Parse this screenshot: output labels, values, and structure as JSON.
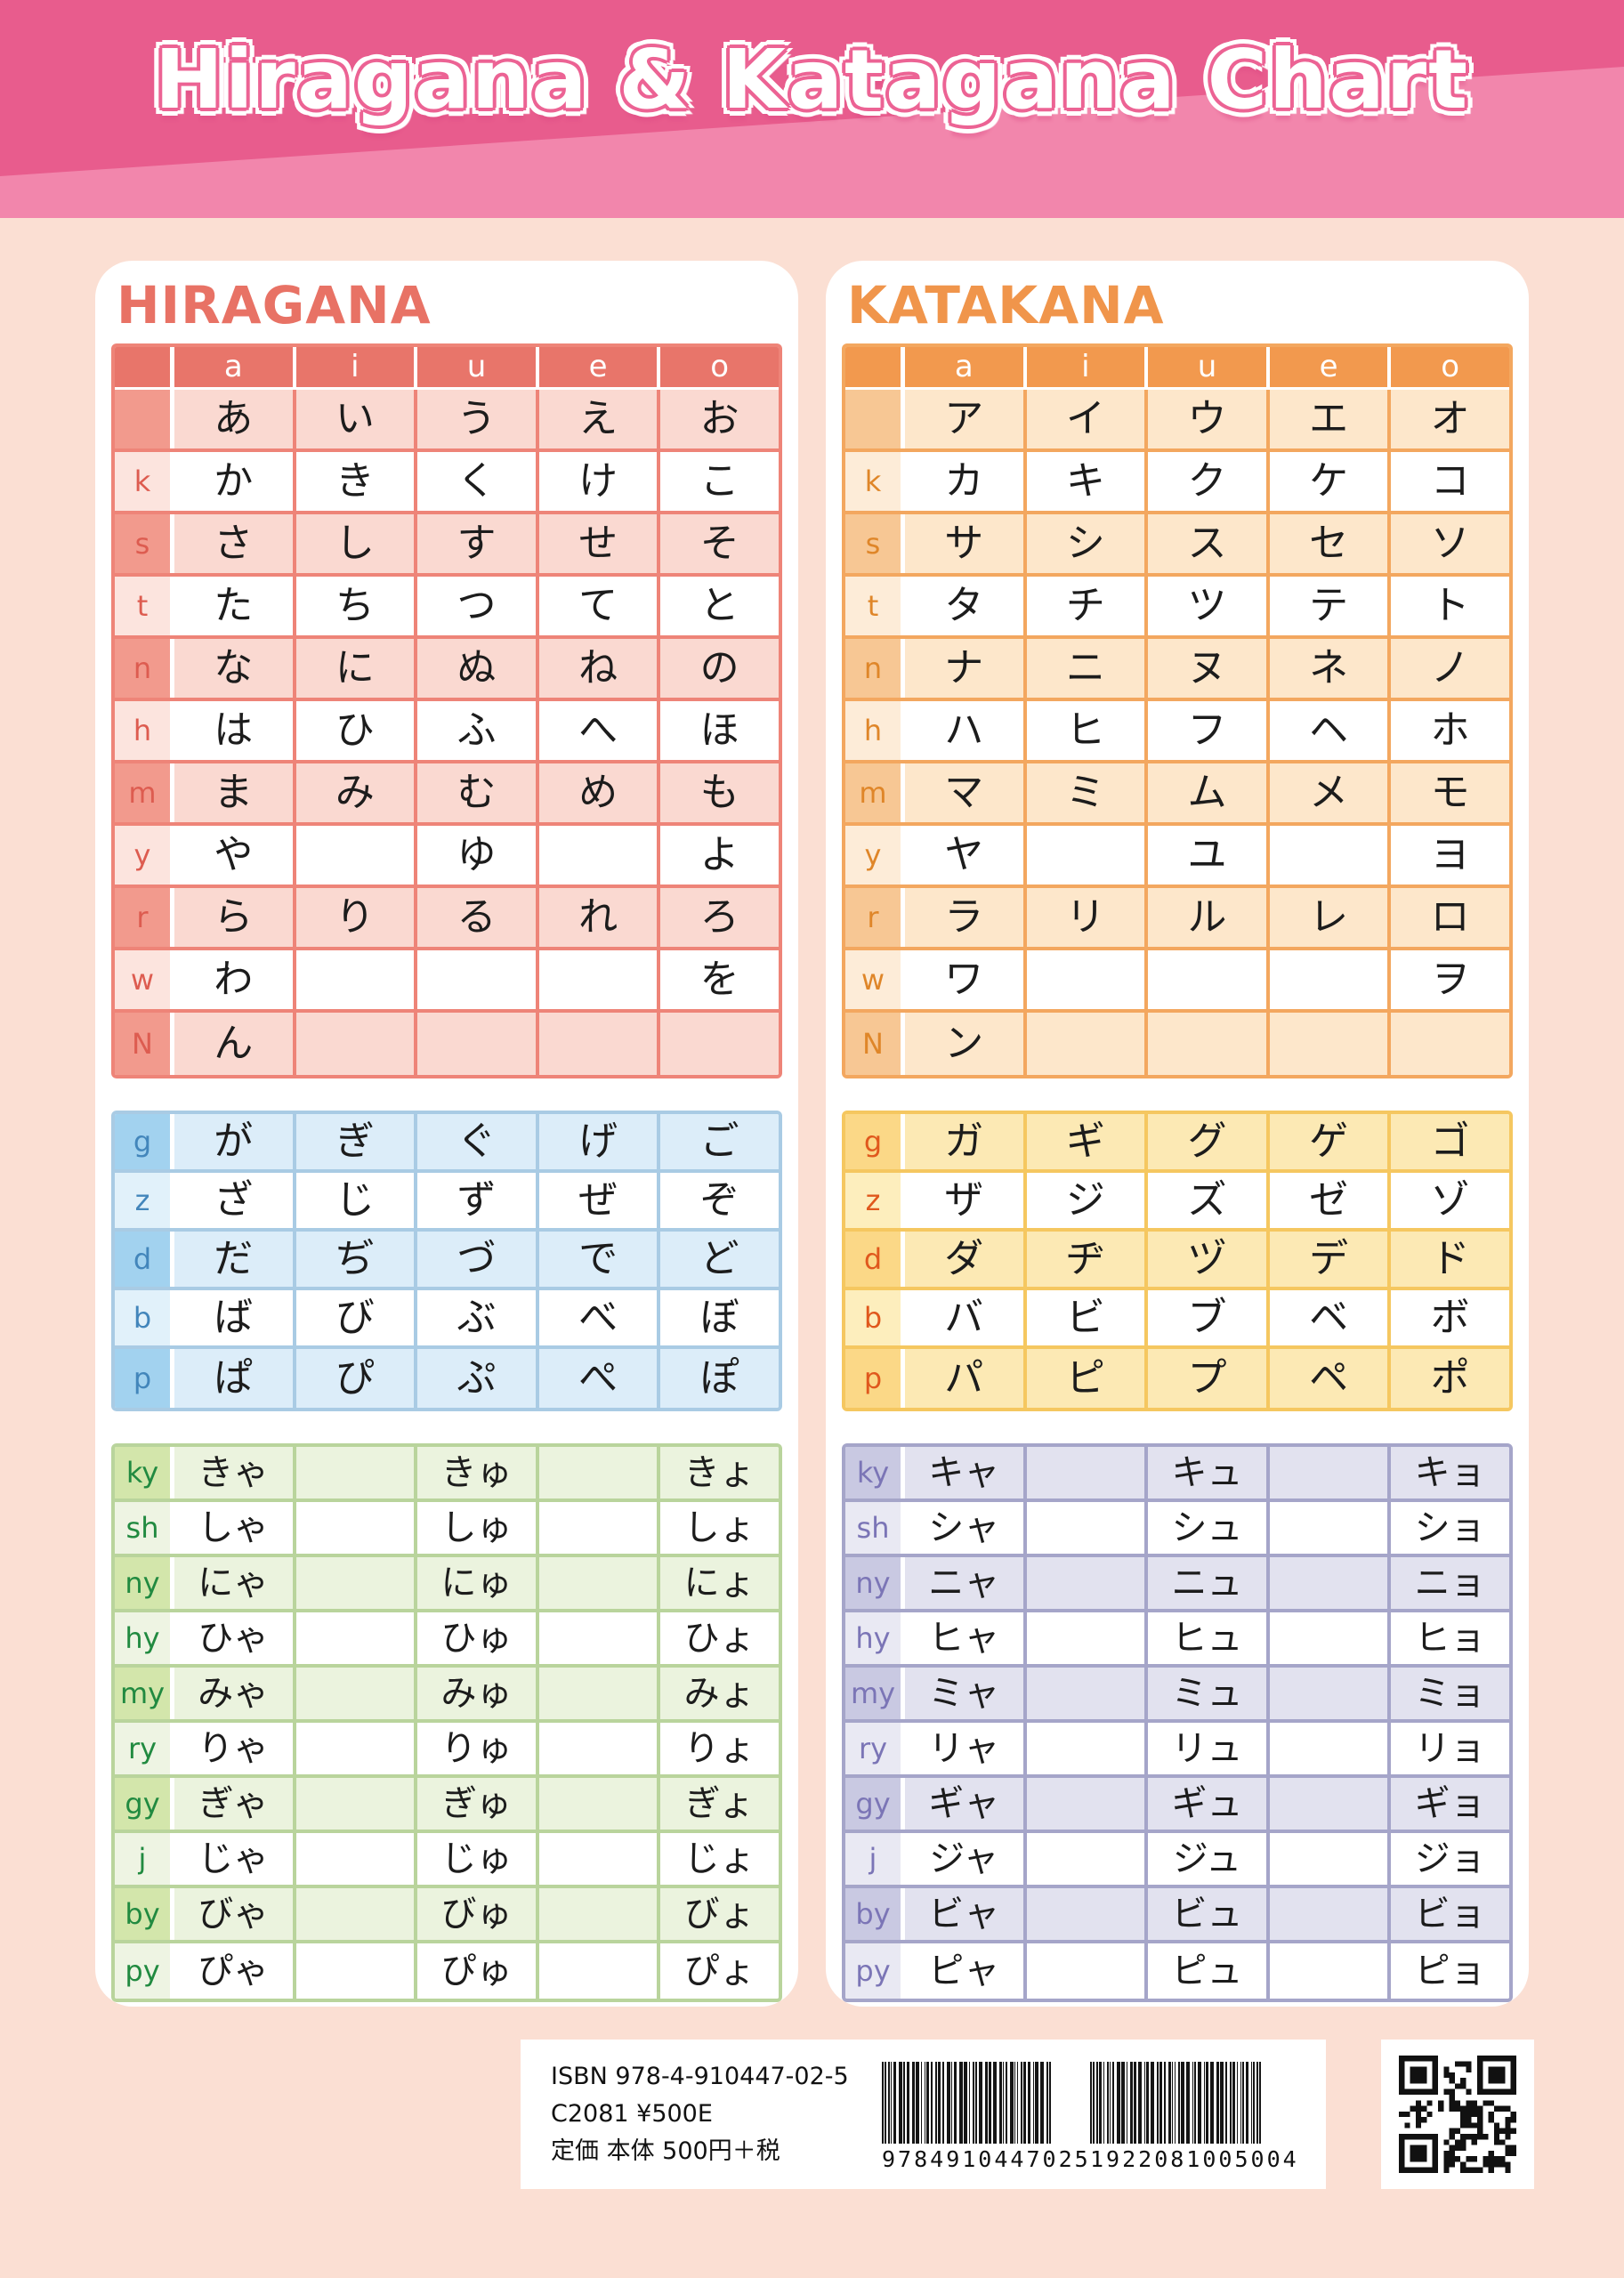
{
  "page": {
    "title": "Hiragana & Katagana Chart"
  },
  "vowel_header": [
    "a",
    "i",
    "u",
    "e",
    "o"
  ],
  "hiragana": {
    "title": "HIRAGANA",
    "base_rows": [
      {
        "label": "",
        "cells": [
          "あ",
          "い",
          "う",
          "え",
          "お"
        ]
      },
      {
        "label": "k",
        "cells": [
          "か",
          "き",
          "く",
          "け",
          "こ"
        ]
      },
      {
        "label": "s",
        "cells": [
          "さ",
          "し",
          "す",
          "せ",
          "そ"
        ]
      },
      {
        "label": "t",
        "cells": [
          "た",
          "ち",
          "つ",
          "て",
          "と"
        ]
      },
      {
        "label": "n",
        "cells": [
          "な",
          "に",
          "ぬ",
          "ね",
          "の"
        ]
      },
      {
        "label": "h",
        "cells": [
          "は",
          "ひ",
          "ふ",
          "へ",
          "ほ"
        ]
      },
      {
        "label": "m",
        "cells": [
          "ま",
          "み",
          "む",
          "め",
          "も"
        ]
      },
      {
        "label": "y",
        "cells": [
          "や",
          "",
          "ゆ",
          "",
          "よ"
        ]
      },
      {
        "label": "r",
        "cells": [
          "ら",
          "り",
          "る",
          "れ",
          "ろ"
        ]
      },
      {
        "label": "w",
        "cells": [
          "わ",
          "",
          "",
          "",
          "を"
        ]
      },
      {
        "label": "N",
        "cells": [
          "ん",
          "",
          "",
          "",
          ""
        ]
      }
    ],
    "dakuten_rows": [
      {
        "label": "g",
        "cells": [
          "が",
          "ぎ",
          "ぐ",
          "げ",
          "ご"
        ]
      },
      {
        "label": "z",
        "cells": [
          "ざ",
          "じ",
          "ず",
          "ぜ",
          "ぞ"
        ]
      },
      {
        "label": "d",
        "cells": [
          "だ",
          "ぢ",
          "づ",
          "で",
          "ど"
        ]
      },
      {
        "label": "b",
        "cells": [
          "ば",
          "び",
          "ぶ",
          "べ",
          "ぼ"
        ]
      },
      {
        "label": "p",
        "cells": [
          "ぱ",
          "ぴ",
          "ぷ",
          "ぺ",
          "ぽ"
        ]
      }
    ],
    "yoon_rows": [
      {
        "label": "ky",
        "cells": [
          "きゃ",
          "",
          "きゅ",
          "",
          "きょ"
        ]
      },
      {
        "label": "sh",
        "cells": [
          "しゃ",
          "",
          "しゅ",
          "",
          "しょ"
        ]
      },
      {
        "label": "ny",
        "cells": [
          "にゃ",
          "",
          "にゅ",
          "",
          "にょ"
        ]
      },
      {
        "label": "hy",
        "cells": [
          "ひゃ",
          "",
          "ひゅ",
          "",
          "ひょ"
        ]
      },
      {
        "label": "my",
        "cells": [
          "みゃ",
          "",
          "みゅ",
          "",
          "みょ"
        ]
      },
      {
        "label": "ry",
        "cells": [
          "りゃ",
          "",
          "りゅ",
          "",
          "りょ"
        ]
      },
      {
        "label": "gy",
        "cells": [
          "ぎゃ",
          "",
          "ぎゅ",
          "",
          "ぎょ"
        ]
      },
      {
        "label": "j",
        "cells": [
          "じゃ",
          "",
          "じゅ",
          "",
          "じょ"
        ]
      },
      {
        "label": "by",
        "cells": [
          "びゃ",
          "",
          "びゅ",
          "",
          "びょ"
        ]
      },
      {
        "label": "py",
        "cells": [
          "ぴゃ",
          "",
          "ぴゅ",
          "",
          "ぴょ"
        ]
      }
    ]
  },
  "katakana": {
    "title": "KATAKANA",
    "base_rows": [
      {
        "label": "",
        "cells": [
          "ア",
          "イ",
          "ウ",
          "エ",
          "オ"
        ]
      },
      {
        "label": "k",
        "cells": [
          "カ",
          "キ",
          "ク",
          "ケ",
          "コ"
        ]
      },
      {
        "label": "s",
        "cells": [
          "サ",
          "シ",
          "ス",
          "セ",
          "ソ"
        ]
      },
      {
        "label": "t",
        "cells": [
          "タ",
          "チ",
          "ツ",
          "テ",
          "ト"
        ]
      },
      {
        "label": "n",
        "cells": [
          "ナ",
          "ニ",
          "ヌ",
          "ネ",
          "ノ"
        ]
      },
      {
        "label": "h",
        "cells": [
          "ハ",
          "ヒ",
          "フ",
          "ヘ",
          "ホ"
        ]
      },
      {
        "label": "m",
        "cells": [
          "マ",
          "ミ",
          "ム",
          "メ",
          "モ"
        ]
      },
      {
        "label": "y",
        "cells": [
          "ヤ",
          "",
          "ユ",
          "",
          "ヨ"
        ]
      },
      {
        "label": "r",
        "cells": [
          "ラ",
          "リ",
          "ル",
          "レ",
          "ロ"
        ]
      },
      {
        "label": "w",
        "cells": [
          "ワ",
          "",
          "",
          "",
          "ヲ"
        ]
      },
      {
        "label": "N",
        "cells": [
          "ン",
          "",
          "",
          "",
          ""
        ]
      }
    ],
    "dakuten_rows": [
      {
        "label": "g",
        "cells": [
          "ガ",
          "ギ",
          "グ",
          "ゲ",
          "ゴ"
        ]
      },
      {
        "label": "z",
        "cells": [
          "ザ",
          "ジ",
          "ズ",
          "ゼ",
          "ゾ"
        ]
      },
      {
        "label": "d",
        "cells": [
          "ダ",
          "ヂ",
          "ヅ",
          "デ",
          "ド"
        ]
      },
      {
        "label": "b",
        "cells": [
          "バ",
          "ビ",
          "ブ",
          "ベ",
          "ボ"
        ]
      },
      {
        "label": "p",
        "cells": [
          "パ",
          "ピ",
          "プ",
          "ペ",
          "ポ"
        ]
      }
    ],
    "yoon_rows": [
      {
        "label": "ky",
        "cells": [
          "キャ",
          "",
          "キュ",
          "",
          "キョ"
        ]
      },
      {
        "label": "sh",
        "cells": [
          "シャ",
          "",
          "シュ",
          "",
          "ショ"
        ]
      },
      {
        "label": "ny",
        "cells": [
          "ニャ",
          "",
          "ニュ",
          "",
          "ニョ"
        ]
      },
      {
        "label": "hy",
        "cells": [
          "ヒャ",
          "",
          "ヒュ",
          "",
          "ヒョ"
        ]
      },
      {
        "label": "my",
        "cells": [
          "ミャ",
          "",
          "ミュ",
          "",
          "ミョ"
        ]
      },
      {
        "label": "ry",
        "cells": [
          "リャ",
          "",
          "リュ",
          "",
          "リョ"
        ]
      },
      {
        "label": "gy",
        "cells": [
          "ギャ",
          "",
          "ギュ",
          "",
          "ギョ"
        ]
      },
      {
        "label": "j",
        "cells": [
          "ジャ",
          "",
          "ジュ",
          "",
          "ジョ"
        ]
      },
      {
        "label": "by",
        "cells": [
          "ビャ",
          "",
          "ビュ",
          "",
          "ビョ"
        ]
      },
      {
        "label": "py",
        "cells": [
          "ピャ",
          "",
          "ピュ",
          "",
          "ピョ"
        ]
      }
    ]
  },
  "footer": {
    "isbn_line": "ISBN 978-4-910447-02-5",
    "code_line": "C2081 ¥500E",
    "price_line": "定価 本体 500円＋税",
    "barcode1_digits": "9784910447025",
    "barcode2_digits": "1922081005004"
  },
  "colors": {
    "page_bg": "#fbdfd3",
    "band_dark": "#e85c8d",
    "band_light": "#f286ac",
    "title_outline": "#ec6394",
    "themes": {
      "red": {
        "title": "#e87265",
        "header": "#e8756a",
        "headerText": "#ffffff",
        "border": "#ee8478",
        "cell": "#fad9d1",
        "labelDark": "#f29a8d",
        "labelLight": "#fce4de",
        "labelText": "#dd5c50"
      },
      "orange": {
        "title": "#f0954b",
        "header": "#f2994e",
        "headerText": "#ffffff",
        "border": "#f3a75f",
        "cell": "#fde7cb",
        "labelDark": "#f7c794",
        "labelLight": "#fdecd8",
        "labelText": "#df8629"
      },
      "blue": {
        "border": "#a9cbe4",
        "cell": "#dcedf9",
        "labelDark": "#a2d2ef",
        "labelLight": "#e1f1fa",
        "labelText": "#4386bb"
      },
      "green": {
        "border": "#b9d49c",
        "cell": "#ebf3de",
        "labelDark": "#d3e6ab",
        "labelLight": "#eef4e3",
        "labelText": "#218a40"
      },
      "yellow": {
        "border": "#f5c760",
        "cell": "#fce9b4",
        "labelDark": "#fbd887",
        "labelLight": "#fdeebd",
        "labelText": "#e0581d"
      },
      "purple": {
        "border": "#a5a5c9",
        "cell": "#e2e2ef",
        "labelDark": "#c9c9e2",
        "labelLight": "#e9e9f3",
        "labelText": "#7b75b6"
      }
    }
  }
}
